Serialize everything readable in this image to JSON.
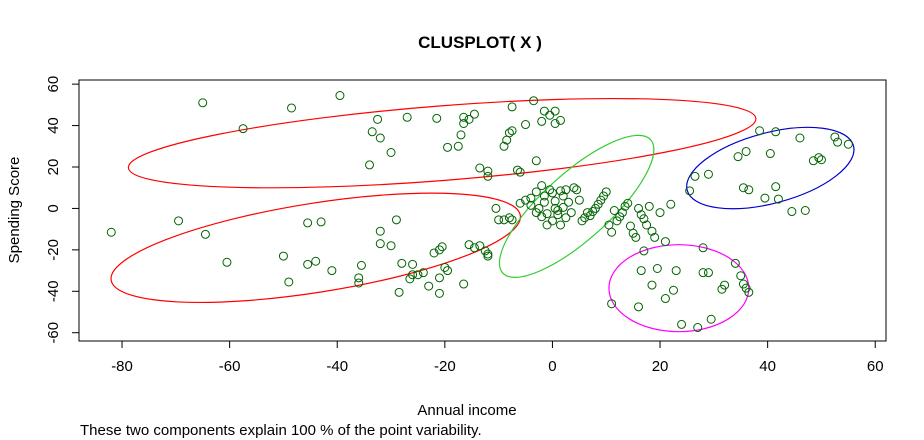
{
  "chart_data": {
    "type": "scatter",
    "title": "CLUSPLOT( X )",
    "xlabel": "Annual income",
    "ylabel": "Spending Score",
    "subtitle": "These two components explain 100 % of the point variability.",
    "xlim": [
      -88,
      62
    ],
    "ylim": [
      -64,
      62
    ],
    "xticks": [
      -80,
      -60,
      -40,
      -20,
      0,
      20,
      40,
      60
    ],
    "yticks": [
      -60,
      -40,
      -20,
      0,
      20,
      40,
      60
    ],
    "point_color": "#006400",
    "points": [
      [
        -65,
        51
      ],
      [
        -57.5,
        38.5
      ],
      [
        -48.5,
        48.5
      ],
      [
        -39.5,
        54.5
      ],
      [
        -32.5,
        43
      ],
      [
        -33.5,
        37
      ],
      [
        -32,
        34
      ],
      [
        -30,
        27
      ],
      [
        -34,
        21
      ],
      [
        -27,
        44
      ],
      [
        -21.5,
        43.5
      ],
      [
        -19.5,
        29.5
      ],
      [
        -17.5,
        30
      ],
      [
        -17,
        35.5
      ],
      [
        -16.5,
        41
      ],
      [
        -16.5,
        44
      ],
      [
        -15.5,
        43
      ],
      [
        -14.5,
        45.5
      ],
      [
        -13.5,
        19.5
      ],
      [
        -12,
        18
      ],
      [
        -9,
        30
      ],
      [
        -8.5,
        33
      ],
      [
        -8,
        36.5
      ],
      [
        -7.5,
        37.5
      ],
      [
        -7.5,
        49
      ],
      [
        -5,
        40.5
      ],
      [
        -3.5,
        52
      ],
      [
        -2,
        42
      ],
      [
        -1.5,
        47
      ],
      [
        -0.5,
        45
      ],
      [
        0.5,
        47
      ],
      [
        0.5,
        41
      ],
      [
        1.5,
        42.5
      ],
      [
        -3,
        23
      ],
      [
        -82,
        -11.5
      ],
      [
        -69.5,
        -6
      ],
      [
        -64.5,
        -12.5
      ],
      [
        -60.5,
        -26
      ],
      [
        -50,
        -23
      ],
      [
        -49,
        -35.5
      ],
      [
        -45.5,
        -7
      ],
      [
        -45.5,
        -27
      ],
      [
        -44,
        -25.5
      ],
      [
        -43,
        -6.5
      ],
      [
        -41,
        -30
      ],
      [
        -35.5,
        -27.5
      ],
      [
        -36,
        -33.5
      ],
      [
        -36,
        -36
      ],
      [
        -32,
        -11
      ],
      [
        -32,
        -17
      ],
      [
        -30,
        -18
      ],
      [
        -29,
        -5.5
      ],
      [
        -28.5,
        -40.5
      ],
      [
        -28,
        -26.5
      ],
      [
        -26.5,
        -34
      ],
      [
        -26,
        -32
      ],
      [
        -25,
        -32
      ],
      [
        -24,
        -31
      ],
      [
        -23,
        -37.5
      ],
      [
        -22,
        -21.5
      ],
      [
        -21,
        -20
      ],
      [
        -20.5,
        -18.5
      ],
      [
        -20,
        -28.5
      ],
      [
        -19.5,
        -30
      ],
      [
        -21,
        -33.5
      ],
      [
        -21,
        -41
      ],
      [
        -16.5,
        -36.5
      ],
      [
        -15.5,
        -17.5
      ],
      [
        -14.5,
        -19
      ],
      [
        -13.5,
        -18
      ],
      [
        -12.5,
        -20.5
      ],
      [
        -12,
        -22
      ],
      [
        -12,
        -23
      ],
      [
        -26,
        -27
      ],
      [
        -12,
        15.5
      ],
      [
        -10,
        -5.5
      ],
      [
        -8,
        -4.5
      ],
      [
        -7.5,
        -5.5
      ],
      [
        -6.5,
        18.5
      ],
      [
        -6,
        17.5
      ],
      [
        -6,
        2.5
      ],
      [
        -5,
        4
      ],
      [
        -4,
        5
      ],
      [
        -4,
        1.5
      ],
      [
        -3,
        8
      ],
      [
        -3,
        -2
      ],
      [
        -2.5,
        0
      ],
      [
        -2,
        11
      ],
      [
        -2,
        -4
      ],
      [
        -1.5,
        6
      ],
      [
        -1.5,
        3
      ],
      [
        -1,
        -2.5
      ],
      [
        -1,
        -8
      ],
      [
        -0.5,
        9
      ],
      [
        0,
        7.5
      ],
      [
        0,
        -6
      ],
      [
        0.5,
        3.5
      ],
      [
        0.5,
        0
      ],
      [
        1,
        -1
      ],
      [
        1,
        -3
      ],
      [
        1.5,
        8.5
      ],
      [
        1.5,
        -8
      ],
      [
        2,
        6
      ],
      [
        2,
        0.5
      ],
      [
        2.5,
        9
      ],
      [
        2.5,
        -4.5
      ],
      [
        3,
        3
      ],
      [
        3.5,
        -2
      ],
      [
        4,
        10
      ],
      [
        4.5,
        9
      ],
      [
        5,
        4
      ],
      [
        5.5,
        -6
      ],
      [
        6,
        -4.5
      ],
      [
        6.5,
        -2
      ],
      [
        7,
        -3.5
      ],
      [
        7.5,
        -1.5
      ],
      [
        8,
        0
      ],
      [
        8.5,
        2
      ],
      [
        9,
        4
      ],
      [
        9.5,
        6
      ],
      [
        10,
        8
      ],
      [
        10.5,
        -8
      ],
      [
        11,
        -11.5
      ],
      [
        11.5,
        -1
      ],
      [
        12,
        -6
      ],
      [
        12.5,
        -4
      ],
      [
        13,
        -2
      ],
      [
        13.5,
        1
      ],
      [
        14,
        2.5
      ],
      [
        14.5,
        -8.5
      ],
      [
        15,
        -12
      ],
      [
        15.5,
        -14
      ],
      [
        16,
        0
      ],
      [
        16.5,
        -3
      ],
      [
        17,
        -5
      ],
      [
        17.5,
        -8
      ],
      [
        18,
        1
      ],
      [
        18.5,
        -11
      ],
      [
        19,
        -14
      ],
      [
        20,
        -2
      ],
      [
        21,
        -16
      ],
      [
        22,
        2
      ],
      [
        -10.5,
        0
      ],
      [
        -9,
        -5.5
      ],
      [
        25.5,
        8.5
      ],
      [
        26.5,
        15.5
      ],
      [
        29,
        16.5
      ],
      [
        34.5,
        25
      ],
      [
        35.5,
        10
      ],
      [
        36,
        27.5
      ],
      [
        36.5,
        9
      ],
      [
        38.5,
        37.5
      ],
      [
        39.5,
        5
      ],
      [
        40.5,
        26.5
      ],
      [
        41.5,
        37
      ],
      [
        41.5,
        10.5
      ],
      [
        42,
        4.5
      ],
      [
        44.5,
        -1.5
      ],
      [
        46,
        34
      ],
      [
        47,
        -1
      ],
      [
        48.5,
        23
      ],
      [
        49.5,
        24.5
      ],
      [
        50,
        23.5
      ],
      [
        52.5,
        34.5
      ],
      [
        53,
        32
      ],
      [
        55,
        31
      ],
      [
        11,
        -46
      ],
      [
        16,
        -47.5
      ],
      [
        16.5,
        -30
      ],
      [
        17,
        -20.5
      ],
      [
        18.5,
        -37
      ],
      [
        19.5,
        -29
      ],
      [
        21,
        -43.5
      ],
      [
        22.5,
        -39.5
      ],
      [
        23,
        -30
      ],
      [
        24,
        -56
      ],
      [
        27,
        -57.5
      ],
      [
        28,
        -19
      ],
      [
        28,
        -31
      ],
      [
        29,
        -31
      ],
      [
        29.5,
        -53.5
      ],
      [
        31.5,
        -39
      ],
      [
        32,
        -37
      ],
      [
        34,
        -26.5
      ],
      [
        35,
        -32.5
      ],
      [
        35.5,
        -36.5
      ],
      [
        36,
        -38.5
      ],
      [
        36.5,
        -40.5
      ]
    ],
    "clusters": [
      {
        "color": "#ff0000",
        "ellipse": {
          "cx": -20.5,
          "cy": 31.5,
          "rx": 58.5,
          "ry": 18.0,
          "angle": -4.5
        }
      },
      {
        "color": "#ff0000",
        "ellipse": {
          "cx": -44.0,
          "cy": -19.0,
          "rx": 38.5,
          "ry": 21.5,
          "angle": -9.0
        }
      },
      {
        "color": "#33cc33",
        "ellipse": {
          "cx": 4.5,
          "cy": 1.0,
          "rx": 18.5,
          "ry": 16.0,
          "angle": -42.0
        }
      },
      {
        "color": "#0000cc",
        "ellipse": {
          "cx": 40.5,
          "cy": 19.5,
          "rx": 16.0,
          "ry": 17.0,
          "angle": -15.0
        }
      },
      {
        "color": "#ff00ff",
        "ellipse": {
          "cx": 23.5,
          "cy": -38.5,
          "rx": 13.0,
          "ry": 21.0,
          "angle": 0
        }
      }
    ]
  }
}
